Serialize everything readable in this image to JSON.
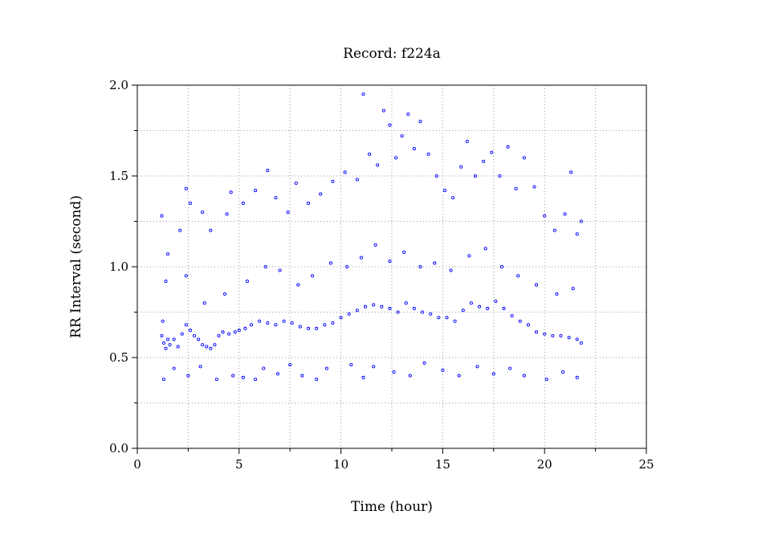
{
  "chart_data": {
    "type": "scatter",
    "title": "Record:  f224a",
    "xlabel": "Time (hour)",
    "ylabel": "RR Interval (second)",
    "xlim": [
      0,
      25
    ],
    "ylim": [
      0.0,
      2.0
    ],
    "xticks": [
      "0",
      "5",
      "10",
      "15",
      "20",
      "25"
    ],
    "yticks": [
      "0.0",
      "0.5",
      "1.0",
      "1.5",
      "2.0"
    ],
    "grid": true,
    "marker_color": "#0000ff",
    "series": [
      {
        "values": [
          {
            "x": 1.2,
            "y": 0.62
          },
          {
            "x": 1.25,
            "y": 0.7
          },
          {
            "x": 1.3,
            "y": 0.58
          },
          {
            "x": 1.4,
            "y": 0.55
          },
          {
            "x": 1.5,
            "y": 0.6
          },
          {
            "x": 1.6,
            "y": 0.57
          },
          {
            "x": 1.8,
            "y": 0.6
          },
          {
            "x": 2.0,
            "y": 0.56
          },
          {
            "x": 2.2,
            "y": 0.63
          },
          {
            "x": 2.4,
            "y": 0.68
          },
          {
            "x": 2.6,
            "y": 0.65
          },
          {
            "x": 2.8,
            "y": 0.62
          },
          {
            "x": 3.0,
            "y": 0.6
          },
          {
            "x": 3.2,
            "y": 0.57
          },
          {
            "x": 3.4,
            "y": 0.56
          },
          {
            "x": 3.6,
            "y": 0.55
          },
          {
            "x": 3.8,
            "y": 0.57
          },
          {
            "x": 4.0,
            "y": 0.62
          },
          {
            "x": 4.2,
            "y": 0.64
          },
          {
            "x": 4.5,
            "y": 0.63
          },
          {
            "x": 4.8,
            "y": 0.64
          },
          {
            "x": 5.0,
            "y": 0.65
          },
          {
            "x": 5.3,
            "y": 0.66
          },
          {
            "x": 5.6,
            "y": 0.68
          },
          {
            "x": 6.0,
            "y": 0.7
          },
          {
            "x": 6.4,
            "y": 0.69
          },
          {
            "x": 6.8,
            "y": 0.68
          },
          {
            "x": 7.2,
            "y": 0.7
          },
          {
            "x": 7.6,
            "y": 0.69
          },
          {
            "x": 8.0,
            "y": 0.67
          },
          {
            "x": 8.4,
            "y": 0.66
          },
          {
            "x": 8.8,
            "y": 0.66
          },
          {
            "x": 9.2,
            "y": 0.68
          },
          {
            "x": 9.6,
            "y": 0.69
          },
          {
            "x": 10.0,
            "y": 0.72
          },
          {
            "x": 10.4,
            "y": 0.74
          },
          {
            "x": 10.8,
            "y": 0.76
          },
          {
            "x": 11.2,
            "y": 0.78
          },
          {
            "x": 11.6,
            "y": 0.79
          },
          {
            "x": 12.0,
            "y": 0.78
          },
          {
            "x": 12.4,
            "y": 0.77
          },
          {
            "x": 12.8,
            "y": 0.75
          },
          {
            "x": 13.2,
            "y": 0.8
          },
          {
            "x": 13.6,
            "y": 0.77
          },
          {
            "x": 14.0,
            "y": 0.75
          },
          {
            "x": 14.4,
            "y": 0.74
          },
          {
            "x": 14.8,
            "y": 0.72
          },
          {
            "x": 15.2,
            "y": 0.72
          },
          {
            "x": 15.6,
            "y": 0.7
          },
          {
            "x": 16.0,
            "y": 0.76
          },
          {
            "x": 16.4,
            "y": 0.8
          },
          {
            "x": 16.8,
            "y": 0.78
          },
          {
            "x": 17.2,
            "y": 0.77
          },
          {
            "x": 17.6,
            "y": 0.81
          },
          {
            "x": 18.0,
            "y": 0.77
          },
          {
            "x": 18.4,
            "y": 0.73
          },
          {
            "x": 18.8,
            "y": 0.7
          },
          {
            "x": 19.2,
            "y": 0.68
          },
          {
            "x": 19.6,
            "y": 0.64
          },
          {
            "x": 20.0,
            "y": 0.63
          },
          {
            "x": 20.4,
            "y": 0.62
          },
          {
            "x": 20.8,
            "y": 0.62
          },
          {
            "x": 21.2,
            "y": 0.61
          },
          {
            "x": 21.6,
            "y": 0.6
          },
          {
            "x": 21.8,
            "y": 0.58
          },
          {
            "x": 1.2,
            "y": 1.28
          },
          {
            "x": 1.5,
            "y": 1.07
          },
          {
            "x": 2.1,
            "y": 1.2
          },
          {
            "x": 2.4,
            "y": 1.43
          },
          {
            "x": 2.6,
            "y": 1.35
          },
          {
            "x": 3.2,
            "y": 1.3
          },
          {
            "x": 3.6,
            "y": 1.2
          },
          {
            "x": 4.4,
            "y": 1.29
          },
          {
            "x": 4.6,
            "y": 1.41
          },
          {
            "x": 5.2,
            "y": 1.35
          },
          {
            "x": 5.8,
            "y": 1.42
          },
          {
            "x": 6.4,
            "y": 1.53
          },
          {
            "x": 6.8,
            "y": 1.38
          },
          {
            "x": 7.4,
            "y": 1.3
          },
          {
            "x": 7.8,
            "y": 1.46
          },
          {
            "x": 8.4,
            "y": 1.35
          },
          {
            "x": 9.0,
            "y": 1.4
          },
          {
            "x": 9.6,
            "y": 1.47
          },
          {
            "x": 10.2,
            "y": 1.52
          },
          {
            "x": 10.8,
            "y": 1.48
          },
          {
            "x": 11.1,
            "y": 1.95
          },
          {
            "x": 11.4,
            "y": 1.62
          },
          {
            "x": 11.8,
            "y": 1.56
          },
          {
            "x": 12.1,
            "y": 1.86
          },
          {
            "x": 12.4,
            "y": 1.78
          },
          {
            "x": 12.7,
            "y": 1.6
          },
          {
            "x": 13.0,
            "y": 1.72
          },
          {
            "x": 13.3,
            "y": 1.84
          },
          {
            "x": 13.6,
            "y": 1.65
          },
          {
            "x": 13.9,
            "y": 1.8
          },
          {
            "x": 14.3,
            "y": 1.62
          },
          {
            "x": 14.7,
            "y": 1.5
          },
          {
            "x": 15.1,
            "y": 1.42
          },
          {
            "x": 15.5,
            "y": 1.38
          },
          {
            "x": 15.9,
            "y": 1.55
          },
          {
            "x": 16.2,
            "y": 1.69
          },
          {
            "x": 16.6,
            "y": 1.5
          },
          {
            "x": 17.0,
            "y": 1.58
          },
          {
            "x": 17.4,
            "y": 1.63
          },
          {
            "x": 17.8,
            "y": 1.5
          },
          {
            "x": 18.2,
            "y": 1.66
          },
          {
            "x": 18.6,
            "y": 1.43
          },
          {
            "x": 19.0,
            "y": 1.6
          },
          {
            "x": 19.5,
            "y": 1.44
          },
          {
            "x": 20.0,
            "y": 1.28
          },
          {
            "x": 20.5,
            "y": 1.2
          },
          {
            "x": 21.0,
            "y": 1.29
          },
          {
            "x": 21.3,
            "y": 1.52
          },
          {
            "x": 21.6,
            "y": 1.18
          },
          {
            "x": 21.8,
            "y": 1.25
          },
          {
            "x": 1.3,
            "y": 0.38
          },
          {
            "x": 1.8,
            "y": 0.44
          },
          {
            "x": 2.5,
            "y": 0.4
          },
          {
            "x": 3.1,
            "y": 0.45
          },
          {
            "x": 3.9,
            "y": 0.38
          },
          {
            "x": 4.7,
            "y": 0.4
          },
          {
            "x": 5.2,
            "y": 0.39
          },
          {
            "x": 5.8,
            "y": 0.38
          },
          {
            "x": 6.2,
            "y": 0.44
          },
          {
            "x": 6.9,
            "y": 0.41
          },
          {
            "x": 7.5,
            "y": 0.46
          },
          {
            "x": 8.1,
            "y": 0.4
          },
          {
            "x": 8.8,
            "y": 0.38
          },
          {
            "x": 9.3,
            "y": 0.44
          },
          {
            "x": 10.5,
            "y": 0.46
          },
          {
            "x": 11.1,
            "y": 0.39
          },
          {
            "x": 11.6,
            "y": 0.45
          },
          {
            "x": 12.6,
            "y": 0.42
          },
          {
            "x": 13.4,
            "y": 0.4
          },
          {
            "x": 14.1,
            "y": 0.47
          },
          {
            "x": 15.0,
            "y": 0.43
          },
          {
            "x": 15.8,
            "y": 0.4
          },
          {
            "x": 16.7,
            "y": 0.45
          },
          {
            "x": 17.5,
            "y": 0.41
          },
          {
            "x": 18.3,
            "y": 0.44
          },
          {
            "x": 19.0,
            "y": 0.4
          },
          {
            "x": 20.1,
            "y": 0.38
          },
          {
            "x": 20.9,
            "y": 0.42
          },
          {
            "x": 21.6,
            "y": 0.39
          },
          {
            "x": 1.4,
            "y": 0.92
          },
          {
            "x": 2.4,
            "y": 0.95
          },
          {
            "x": 3.3,
            "y": 0.8
          },
          {
            "x": 4.3,
            "y": 0.85
          },
          {
            "x": 5.4,
            "y": 0.92
          },
          {
            "x": 6.3,
            "y": 1.0
          },
          {
            "x": 7.0,
            "y": 0.98
          },
          {
            "x": 7.9,
            "y": 0.9
          },
          {
            "x": 8.6,
            "y": 0.95
          },
          {
            "x": 9.5,
            "y": 1.02
          },
          {
            "x": 10.3,
            "y": 1.0
          },
          {
            "x": 11.0,
            "y": 1.05
          },
          {
            "x": 11.7,
            "y": 1.12
          },
          {
            "x": 12.4,
            "y": 1.03
          },
          {
            "x": 13.1,
            "y": 1.08
          },
          {
            "x": 13.9,
            "y": 1.0
          },
          {
            "x": 14.6,
            "y": 1.02
          },
          {
            "x": 15.4,
            "y": 0.98
          },
          {
            "x": 16.3,
            "y": 1.06
          },
          {
            "x": 17.1,
            "y": 1.1
          },
          {
            "x": 17.9,
            "y": 1.0
          },
          {
            "x": 18.7,
            "y": 0.95
          },
          {
            "x": 19.6,
            "y": 0.9
          },
          {
            "x": 20.6,
            "y": 0.85
          },
          {
            "x": 21.4,
            "y": 0.88
          }
        ]
      }
    ]
  }
}
